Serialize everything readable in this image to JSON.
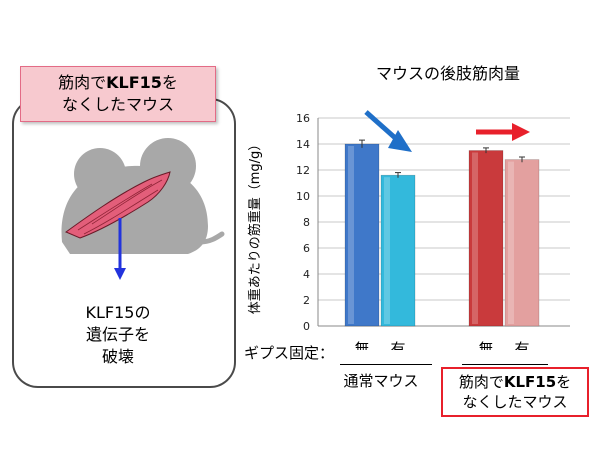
{
  "left_panel": {
    "label_line1_pre": "筋肉で",
    "label_line1_bold": "KLF15",
    "label_line1_post": "を",
    "label_line2": "なくしたマウス",
    "gene_line1": "KLF15の",
    "gene_line2": "遺伝子を",
    "gene_line3": "破壊"
  },
  "chart_data": {
    "type": "bar",
    "title": "マウスの後肢筋肉量",
    "ylabel": "体重あたりの筋重量（mg/g）",
    "ylim": [
      0,
      16
    ],
    "yticks": [
      "0",
      "2",
      "4",
      "6",
      "8",
      "10",
      "12",
      "14",
      "16"
    ],
    "x_row_label": "ギプス固定：",
    "categories": [
      "無",
      "有",
      "無",
      "有"
    ],
    "values": [
      14.0,
      11.6,
      13.5,
      12.8
    ],
    "errors": [
      0.3,
      0.2,
      0.2,
      0.2
    ],
    "bar_colors": [
      "#3f78c9",
      "#33b9dc",
      "#c93a3c",
      "#e3a09f"
    ],
    "groups": [
      "通常マウス",
      "筋肉でKLF15をなくしたマウス"
    ],
    "group2_line1_pre": "筋肉で",
    "group2_line1_bold": "KLF15",
    "group2_line1_post": "を",
    "group2_line2": "なくしたマウス",
    "arrow_colors": [
      "#1f6fc8",
      "#e8202b"
    ]
  }
}
